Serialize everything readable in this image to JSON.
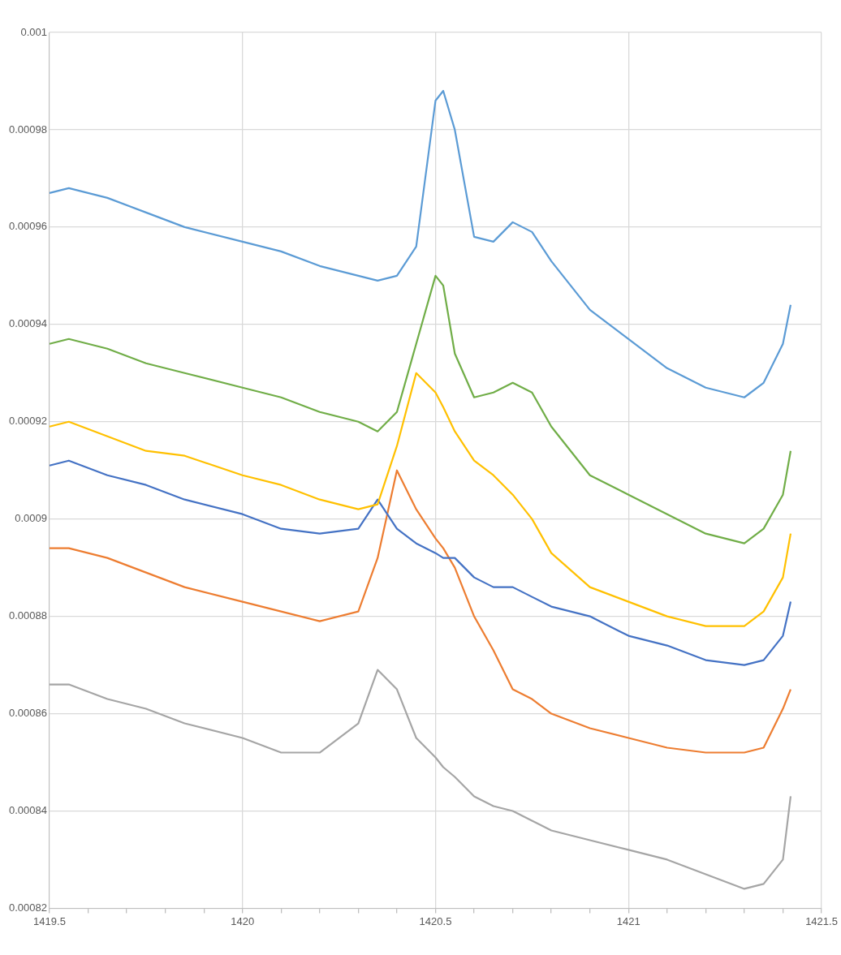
{
  "chart_data": {
    "type": "line",
    "marker": "none",
    "grid": true,
    "legend": false,
    "x": [
      1419.5,
      1419.55,
      1419.65,
      1419.75,
      1419.85,
      1420,
      1420.1,
      1420.2,
      1420.3,
      1420.35,
      1420.4,
      1420.45,
      1420.5,
      1420.52,
      1420.55,
      1420.6,
      1420.65,
      1420.7,
      1420.75,
      1420.8,
      1420.9,
      1421,
      1421.1,
      1421.2,
      1421.3,
      1421.35,
      1421.4,
      1421.42
    ],
    "xlim": [
      1419.5,
      1421.5
    ],
    "xticks": [
      1419.5,
      {
        "value": 1419.6,
        "label": null
      },
      {
        "value": 1419.7,
        "label": null
      },
      {
        "value": 1419.8,
        "label": null
      },
      {
        "value": 1419.9,
        "label": null
      },
      1420,
      {
        "value": 1420.1,
        "label": null
      },
      {
        "value": 1420.2,
        "label": null
      },
      {
        "value": 1420.3,
        "label": null
      },
      {
        "value": 1420.4,
        "label": null
      },
      1420.5,
      {
        "value": 1420.6,
        "label": null
      },
      {
        "value": 1420.7,
        "label": null
      },
      {
        "value": 1420.8,
        "label": null
      },
      {
        "value": 1420.9,
        "label": null
      },
      1421,
      {
        "value": 1421.1,
        "label": null
      },
      {
        "value": 1421.2,
        "label": null
      },
      {
        "value": 1421.3,
        "label": null
      },
      {
        "value": 1421.4,
        "label": null
      },
      1421.5
    ],
    "ylim": [
      0.00082,
      0.001
    ],
    "yticks": [
      0.00082,
      0.00084,
      0.00086,
      0.00088,
      0.0009,
      0.00092,
      0.00094,
      0.00096,
      0.00098,
      0.001
    ],
    "series": [
      {
        "color": "#5b9bd5",
        "values": [
          0.000967,
          0.000968,
          0.000966,
          0.000963,
          0.00096,
          0.000957,
          0.000955,
          0.000952,
          0.00095,
          0.000949,
          0.00095,
          0.000956,
          0.000986,
          0.000988,
          0.00098,
          0.000958,
          0.000957,
          0.000961,
          0.000959,
          0.000953,
          0.000943,
          0.000937,
          0.000931,
          0.000927,
          0.000925,
          0.000928,
          0.000936,
          0.000944
        ]
      },
      {
        "color": "#70ad47",
        "values": [
          0.000936,
          0.000937,
          0.000935,
          0.000932,
          0.00093,
          0.000927,
          0.000925,
          0.000922,
          0.00092,
          0.000918,
          0.000922,
          0.000936,
          0.00095,
          0.000948,
          0.000934,
          0.000925,
          0.000926,
          0.000928,
          0.000926,
          0.000919,
          0.000909,
          0.000905,
          0.000901,
          0.000897,
          0.000895,
          0.000898,
          0.000905,
          0.000914
        ]
      },
      {
        "color": "#ffc000",
        "values": [
          0.000919,
          0.00092,
          0.000917,
          0.000914,
          0.000913,
          0.000909,
          0.000907,
          0.000904,
          0.000902,
          0.000903,
          0.000915,
          0.00093,
          0.000926,
          0.000923,
          0.000918,
          0.000912,
          0.000909,
          0.000905,
          0.0009,
          0.000893,
          0.000886,
          0.000883,
          0.00088,
          0.000878,
          0.000878,
          0.000881,
          0.000888,
          0.000897
        ]
      },
      {
        "color": "#4472c4",
        "values": [
          0.000911,
          0.000912,
          0.000909,
          0.000907,
          0.000904,
          0.000901,
          0.000898,
          0.000897,
          0.000898,
          0.000904,
          0.000898,
          0.000895,
          0.000893,
          0.000892,
          0.000892,
          0.000888,
          0.000886,
          0.000886,
          0.000884,
          0.000882,
          0.00088,
          0.000876,
          0.000874,
          0.000871,
          0.00087,
          0.000871,
          0.000876,
          0.000883
        ]
      },
      {
        "color": "#ed7d31",
        "values": [
          0.000894,
          0.000894,
          0.000892,
          0.000889,
          0.000886,
          0.000883,
          0.000881,
          0.000879,
          0.000881,
          0.000892,
          0.00091,
          0.000902,
          0.000896,
          0.000894,
          0.00089,
          0.00088,
          0.000873,
          0.000865,
          0.000863,
          0.00086,
          0.000857,
          0.000855,
          0.000853,
          0.000852,
          0.000852,
          0.000853,
          0.000861,
          0.000865
        ]
      },
      {
        "color": "#a5a5a5",
        "values": [
          0.000866,
          0.000866,
          0.000863,
          0.000861,
          0.000858,
          0.000855,
          0.000852,
          0.000852,
          0.000858,
          0.000869,
          0.000865,
          0.000855,
          0.000851,
          0.000849,
          0.000847,
          0.000843,
          0.000841,
          0.00084,
          0.000838,
          0.000836,
          0.000834,
          0.000832,
          0.00083,
          0.000827,
          0.000824,
          0.000825,
          0.00083,
          0.000843
        ]
      }
    ]
  }
}
